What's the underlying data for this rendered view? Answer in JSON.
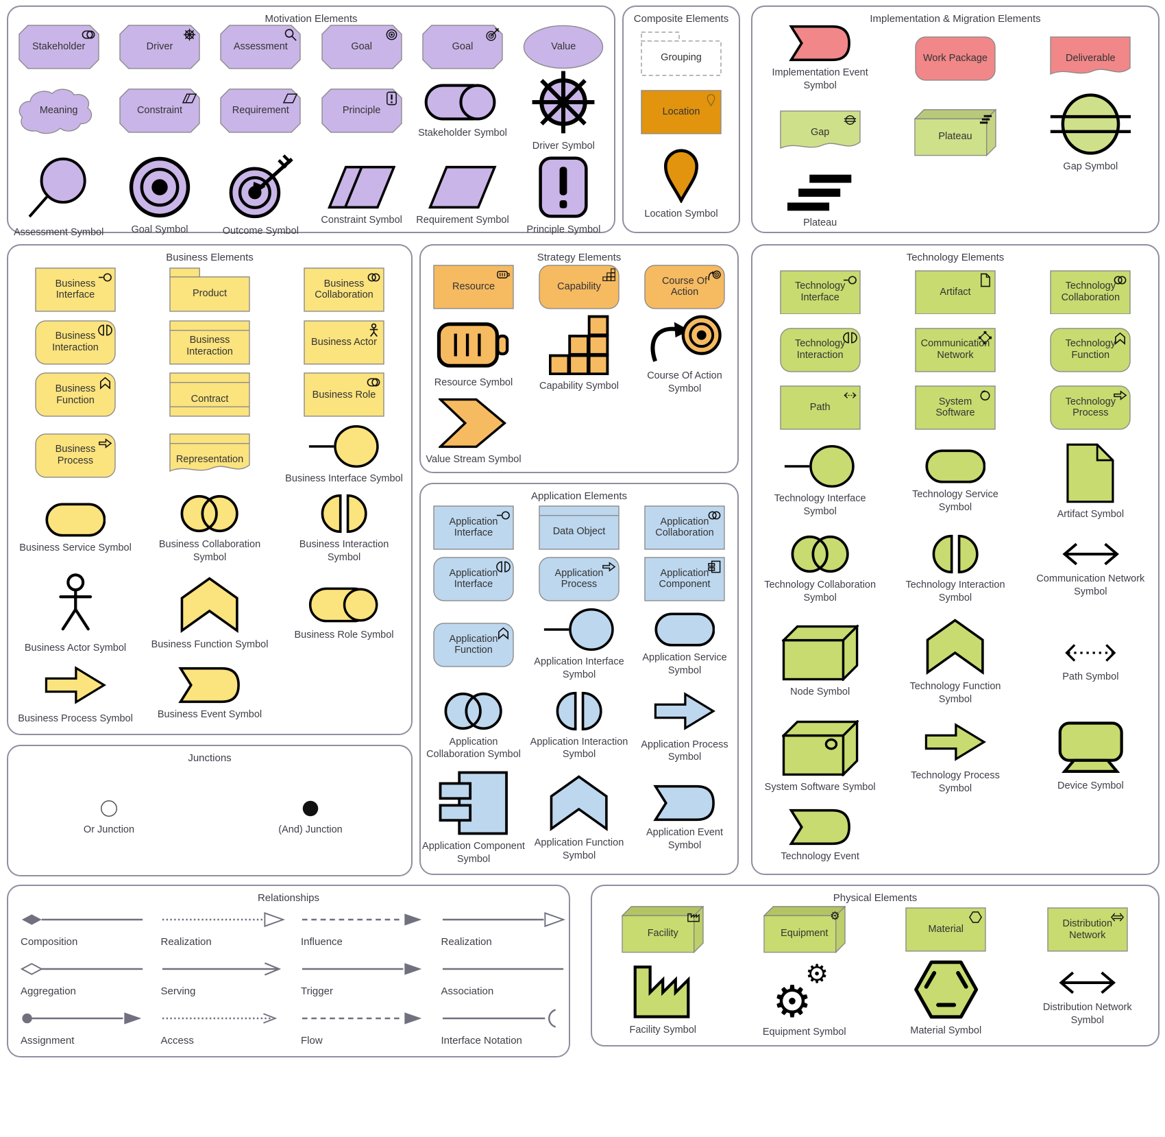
{
  "colors": {
    "motivation": "#C9B5E8",
    "business": "#FBE37E",
    "strategy": "#F6BA61",
    "application": "#BDD7EE",
    "technology": "#C7DB70",
    "physical": "#C7DB70",
    "impl_red": "#F18788",
    "impl_green": "#CFE08A",
    "location": "#E2940F",
    "line": "#70707F",
    "box_border": "#8a8a8a",
    "section_border": "#8F8FA0",
    "title": "#3C3C46"
  },
  "sections": [
    {
      "id": "motivation",
      "title": "Motivation Elements",
      "fill": "motivation",
      "items": [
        {
          "label": "Stakeholder",
          "kind": "octagon",
          "icon": "role"
        },
        {
          "label": "Driver",
          "kind": "octagon",
          "icon": "wheel"
        },
        {
          "label": "Assessment",
          "kind": "octagon",
          "icon": "magnifier"
        },
        {
          "label": "Goal",
          "kind": "octagon",
          "icon": "goal"
        },
        {
          "label": "Goal",
          "kind": "octagon",
          "icon": "outcome"
        },
        {
          "label": "Value",
          "kind": "ellipse"
        },
        {
          "label": "Meaning",
          "kind": "cloud"
        },
        {
          "label": "Constraint",
          "kind": "octagon",
          "icon": "paralined"
        },
        {
          "label": "Requirement",
          "kind": "octagon",
          "icon": "para"
        },
        {
          "label": "Principle",
          "kind": "octagon",
          "icon": "principle"
        },
        {
          "label": "Stakeholder Symbol",
          "kind": "toggle"
        },
        {
          "label": "Driver Symbol",
          "kind": "wheelbig"
        },
        {
          "label": "Assessment Symbol",
          "kind": "magnifierG"
        },
        {
          "label": "Goal Symbol",
          "kind": "bullseye"
        },
        {
          "label": "Outcome Symbol",
          "kind": "outcomeG"
        },
        {
          "label": "Constraint Symbol",
          "kind": "paralinedG"
        },
        {
          "label": "Requirement Symbol",
          "kind": "paraG"
        },
        {
          "label": "Principle Symbol",
          "kind": "principleG"
        }
      ]
    },
    {
      "id": "composite",
      "title": "Composite Elements",
      "fill": "location",
      "items": [
        {
          "label": "Grouping",
          "kind": "grouping"
        },
        {
          "label": "Location",
          "kind": "locationbox",
          "icon": "pin"
        },
        {
          "label": "Location Symbol",
          "kind": "pinG"
        }
      ]
    },
    {
      "id": "implementation",
      "title": "Implementation & Migration Elements",
      "fill": "impl_red",
      "items": [
        {
          "label": "Implementation Event Symbol",
          "kind": "eventflag",
          "fill": "impl_red"
        },
        {
          "label": "Work Package",
          "kind": "rounded",
          "fill": "impl_red"
        },
        {
          "label": "Deliverable",
          "kind": "deliverable",
          "fill": "impl_red"
        },
        {
          "label": "Gap",
          "kind": "deliverable",
          "fill": "impl_green",
          "icon": "gap"
        },
        {
          "label": "Plateau",
          "kind": "box3d",
          "fill": "impl_green",
          "icon": "plateau"
        },
        {
          "label": "Gap Symbol",
          "kind": "gapsym",
          "fill": "impl_green"
        },
        {
          "label": "Plateau",
          "kind": "stairs"
        },
        {
          "kind": "spacer"
        },
        {
          "kind": "spacer"
        }
      ]
    },
    {
      "id": "business",
      "title": "Business Elements",
      "fill": "business",
      "items": [
        {
          "label": "Business Interface",
          "kind": "rect",
          "icon": "interface"
        },
        {
          "label": "Product",
          "kind": "product"
        },
        {
          "label": "Business Collaboration",
          "kind": "rect",
          "icon": "collab"
        },
        {
          "label": "Business Interaction",
          "kind": "rounded",
          "icon": "interaction"
        },
        {
          "label": "Business Interaction",
          "kind": "object"
        },
        {
          "label": "Business Actor",
          "kind": "rect",
          "icon": "actor"
        },
        {
          "label": "Business Function",
          "kind": "rounded",
          "icon": "function"
        },
        {
          "label": "Contract",
          "kind": "contract"
        },
        {
          "label": "Business Role",
          "kind": "rect",
          "icon": "role"
        },
        {
          "label": "Business Process",
          "kind": "rounded",
          "icon": "process"
        },
        {
          "label": "Representation",
          "kind": "representation"
        },
        {
          "label": "Business Interface Symbol",
          "kind": "lollipop"
        },
        {
          "label": "Business Service Symbol",
          "kind": "pill"
        },
        {
          "label": "Business Collaboration Symbol",
          "kind": "collabG"
        },
        {
          "label": "Business Interaction Symbol",
          "kind": "interactionG"
        },
        {
          "label": "Business Actor Symbol",
          "kind": "actorG"
        },
        {
          "label": "Business Function Symbol",
          "kind": "chevfunc"
        },
        {
          "label": "Business Role Symbol",
          "kind": "rolecyl"
        },
        {
          "label": "Business Process Symbol",
          "kind": "thickarrow"
        },
        {
          "label": "Business Event Symbol",
          "kind": "eventflag"
        },
        {
          "kind": "spacer"
        }
      ]
    },
    {
      "id": "junctions",
      "title": "Junctions",
      "fill": "business",
      "items": [
        {
          "label": "Or Junction",
          "kind": "orjunction"
        },
        {
          "label": "(And) Junction",
          "kind": "andjunction"
        }
      ]
    },
    {
      "id": "strategy",
      "title": "Strategy Elements",
      "fill": "strategy",
      "items": [
        {
          "label": "Resource",
          "kind": "rect",
          "icon": "battery"
        },
        {
          "label": "Capability",
          "kind": "rounded",
          "icon": "capability"
        },
        {
          "label": "Course Of Action",
          "kind": "rounded",
          "icon": "coa"
        },
        {
          "label": "Resource Symbol",
          "kind": "batteryG"
        },
        {
          "label": "Capability Symbol",
          "kind": "capsym"
        },
        {
          "label": "Course Of Action Symbol",
          "kind": "coasym"
        },
        {
          "label": "Value Stream Symbol",
          "kind": "valuestream"
        },
        {
          "kind": "spacer"
        },
        {
          "kind": "spacer"
        }
      ]
    },
    {
      "id": "application",
      "title": "Application Elements",
      "fill": "application",
      "items": [
        {
          "label": "Application Interface",
          "kind": "rect",
          "icon": "interface"
        },
        {
          "label": "Data Object",
          "kind": "object"
        },
        {
          "label": "Application Collaboration",
          "kind": "rect",
          "icon": "collab"
        },
        {
          "label": "Application Interface",
          "kind": "rounded",
          "icon": "interaction"
        },
        {
          "label": "Application Process",
          "kind": "rounded",
          "icon": "process"
        },
        {
          "label": "Application Component",
          "kind": "rect",
          "icon": "component"
        },
        {
          "label": "Application Function",
          "kind": "rounded",
          "icon": "function"
        },
        {
          "label": "Application Interface Symbol",
          "kind": "lollipop"
        },
        {
          "label": "Application Service Symbol",
          "kind": "pill"
        },
        {
          "label": "Application Collaboration Symbol",
          "kind": "collabG"
        },
        {
          "label": "Application Interaction Symbol",
          "kind": "interactionG"
        },
        {
          "label": "Application Process Symbol",
          "kind": "thickarrow"
        },
        {
          "label": "Application Component Symbol",
          "kind": "compsym"
        },
        {
          "label": "Application Function Symbol",
          "kind": "chevfunc"
        },
        {
          "label": "Application Event Symbol",
          "kind": "eventflag"
        }
      ]
    },
    {
      "id": "technology",
      "title": "Technology Elements",
      "fill": "technology",
      "items": [
        {
          "label": "Technology Interface",
          "kind": "rect",
          "icon": "interface"
        },
        {
          "label": "Artifact",
          "kind": "rect",
          "icon": "artifact"
        },
        {
          "label": "Technology Collaboration",
          "kind": "rect",
          "icon": "collab"
        },
        {
          "label": "Technology Interaction",
          "kind": "rounded",
          "icon": "interaction"
        },
        {
          "label": "Communication Network",
          "kind": "rect",
          "icon": "network"
        },
        {
          "label": "Technology Function",
          "kind": "rounded",
          "icon": "function"
        },
        {
          "label": "Path",
          "kind": "rect",
          "icon": "patharrow"
        },
        {
          "label": "System Software",
          "kind": "rect",
          "icon": "syssoft"
        },
        {
          "label": "Technology Process",
          "kind": "rounded",
          "icon": "process"
        },
        {
          "label": "Technology Interface Symbol",
          "kind": "lollipop"
        },
        {
          "label": "Technology Service Symbol",
          "kind": "pill"
        },
        {
          "label": "Artifact Symbol",
          "kind": "artifactG"
        },
        {
          "label": "Technology Collaboration Symbol",
          "kind": "collabG"
        },
        {
          "label": "Technology Interaction Symbol",
          "kind": "interactionG"
        },
        {
          "label": "Communication Network Symbol",
          "kind": "netarrowG"
        },
        {
          "label": "Node Symbol",
          "kind": "nodesym"
        },
        {
          "label": "Technology Function Symbol",
          "kind": "chevfunc"
        },
        {
          "label": "Path Symbol",
          "kind": "patharrowG"
        },
        {
          "label": "System Software Symbol",
          "kind": "syssoftG"
        },
        {
          "label": "Technology Process Symbol",
          "kind": "thickarrow"
        },
        {
          "label": "Device Symbol",
          "kind": "devicesym"
        },
        {
          "label": "Technology Event",
          "kind": "eventflag"
        },
        {
          "kind": "spacer"
        },
        {
          "kind": "spacer"
        }
      ]
    },
    {
      "id": "relationships",
      "title": "Relationships",
      "fill": "business",
      "items": [
        {
          "label": "Composition",
          "kind": "rel",
          "variant": "composition"
        },
        {
          "label": "Realization",
          "kind": "rel",
          "variant": "realization-dotted"
        },
        {
          "label": "Influence",
          "kind": "rel",
          "variant": "influence"
        },
        {
          "label": "Realization",
          "kind": "rel",
          "variant": "realization"
        },
        {
          "label": "Aggregation",
          "kind": "rel",
          "variant": "aggregation"
        },
        {
          "label": "Serving",
          "kind": "rel",
          "variant": "serving"
        },
        {
          "label": "Trigger",
          "kind": "rel",
          "variant": "trigger"
        },
        {
          "label": "Association",
          "kind": "rel",
          "variant": "association"
        },
        {
          "label": "Assignment",
          "kind": "rel",
          "variant": "assignment"
        },
        {
          "label": "Access",
          "kind": "rel",
          "variant": "access"
        },
        {
          "label": "Flow",
          "kind": "rel",
          "variant": "flow"
        },
        {
          "label": "Interface Notation",
          "kind": "rel",
          "variant": "interface-notation"
        }
      ]
    },
    {
      "id": "physical",
      "title": "Physical Elements",
      "fill": "physical",
      "items": [
        {
          "label": "Facility",
          "kind": "box3d",
          "icon": "factory"
        },
        {
          "label": "Equipment",
          "kind": "box3d",
          "icon": "gear"
        },
        {
          "label": "Material",
          "kind": "rect",
          "icon": "hex"
        },
        {
          "label": "Distribution Network",
          "kind": "rect",
          "icon": "dnet"
        },
        {
          "label": "Facility Symbol",
          "kind": "factoryG"
        },
        {
          "label": "Equipment Symbol",
          "kind": "gearsG"
        },
        {
          "label": "Material Symbol",
          "kind": "hexG"
        },
        {
          "label": "Distribution Network Symbol",
          "kind": "netarrowG"
        }
      ]
    }
  ]
}
